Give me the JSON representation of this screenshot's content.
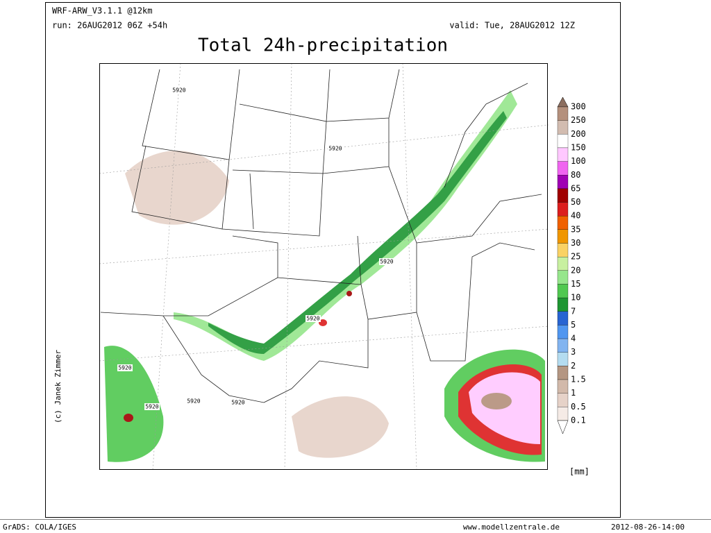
{
  "header": {
    "model": "WRF-ARW_V3.1.1 @12km",
    "run": "run: 26AUG2012 06Z +54h",
    "valid": "valid: Tue, 28AUG2012 12Z",
    "title": "Total 24h-precipitation"
  },
  "map": {
    "contour_labels": [
      "5920",
      "5920",
      "5920",
      "5920",
      "5920",
      "5920",
      "5920",
      "5920"
    ],
    "credit": "(c) Janek Zimmer"
  },
  "colorbar": {
    "labels": [
      "300",
      "250",
      "200",
      "150",
      "100",
      "80",
      "65",
      "50",
      "40",
      "35",
      "30",
      "25",
      "20",
      "15",
      "10",
      "7",
      "5",
      "4",
      "3",
      "2",
      "1.5",
      "1",
      "0.5",
      "0.1"
    ],
    "above_color": "#8c6e5f",
    "band_colors": [
      "#b4907c",
      "#d2bcb0",
      "#ffffff",
      "#ffc8ff",
      "#f064f0",
      "#a000b4",
      "#a00000",
      "#dc1e1e",
      "#f06000",
      "#f09600",
      "#fad264",
      "#c8f0a0",
      "#96e68c",
      "#50c850",
      "#1e9632",
      "#2864d2",
      "#5096f0",
      "#82b4f0",
      "#b4dcf0",
      "#b49682",
      "#d2b9aa",
      "#e6d2c8",
      "#f5ebe6"
    ],
    "below_color": "#ffffff",
    "unit": "[mm]"
  },
  "footer": {
    "software": "GrADS: COLA/IGES",
    "website": "www.modellzentrale.de",
    "timestamp": "2012-08-26-14:00"
  }
}
